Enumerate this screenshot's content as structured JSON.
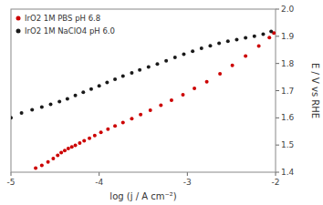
{
  "chart_data": {
    "type": "scatter",
    "title": "",
    "xlabel": "log (j / A cm⁻²)",
    "ylabel": "E / V vs RHE",
    "xlim": [
      -5,
      -2
    ],
    "ylim": [
      1.4,
      2.0
    ],
    "xticks": [
      -5,
      -4,
      -3,
      -2
    ],
    "yticks": [
      1.4,
      1.5,
      1.6,
      1.7,
      1.8,
      1.9,
      {
        "value": 2.0,
        "label": "2.0"
      }
    ],
    "grid": false,
    "legend": "upper left",
    "marker": "circle",
    "series": [
      {
        "name": "IrO2 1M PBS pH 6.8",
        "color": "#cc0000",
        "x": [
          -4.72,
          -4.65,
          -4.58,
          -4.52,
          -4.47,
          -4.43,
          -4.39,
          -4.35,
          -4.31,
          -4.27,
          -4.22,
          -4.17,
          -4.11,
          -4.05,
          -3.98,
          -3.9,
          -3.82,
          -3.73,
          -3.63,
          -3.53,
          -3.42,
          -3.3,
          -3.18,
          -3.05,
          -2.92,
          -2.78,
          -2.63,
          -2.49,
          -2.34,
          -2.19,
          -2.07,
          -2.02
        ],
        "values": [
          1.415,
          1.425,
          1.438,
          1.45,
          1.462,
          1.472,
          1.48,
          1.487,
          1.493,
          1.499,
          1.507,
          1.516,
          1.525,
          1.535,
          1.547,
          1.558,
          1.57,
          1.583,
          1.597,
          1.612,
          1.628,
          1.646,
          1.665,
          1.685,
          1.708,
          1.733,
          1.762,
          1.793,
          1.827,
          1.864,
          1.895,
          1.912
        ]
      },
      {
        "name": "IrO2 1M NaClO4 pH 6.0",
        "color": "#1a1a1a",
        "x": [
          -5.0,
          -4.88,
          -4.76,
          -4.65,
          -4.55,
          -4.45,
          -4.36,
          -4.27,
          -4.18,
          -4.09,
          -4.0,
          -3.91,
          -3.82,
          -3.73,
          -3.63,
          -3.54,
          -3.44,
          -3.34,
          -3.24,
          -3.14,
          -3.04,
          -2.94,
          -2.84,
          -2.74,
          -2.64,
          -2.54,
          -2.44,
          -2.34,
          -2.24,
          -2.14,
          -2.05
        ],
        "values": [
          1.6,
          1.618,
          1.63,
          1.64,
          1.65,
          1.66,
          1.67,
          1.682,
          1.694,
          1.706,
          1.718,
          1.73,
          1.742,
          1.754,
          1.765,
          1.776,
          1.787,
          1.798,
          1.81,
          1.822,
          1.834,
          1.845,
          1.856,
          1.865,
          1.874,
          1.882,
          1.888,
          1.894,
          1.9,
          1.908,
          1.918
        ]
      }
    ]
  }
}
